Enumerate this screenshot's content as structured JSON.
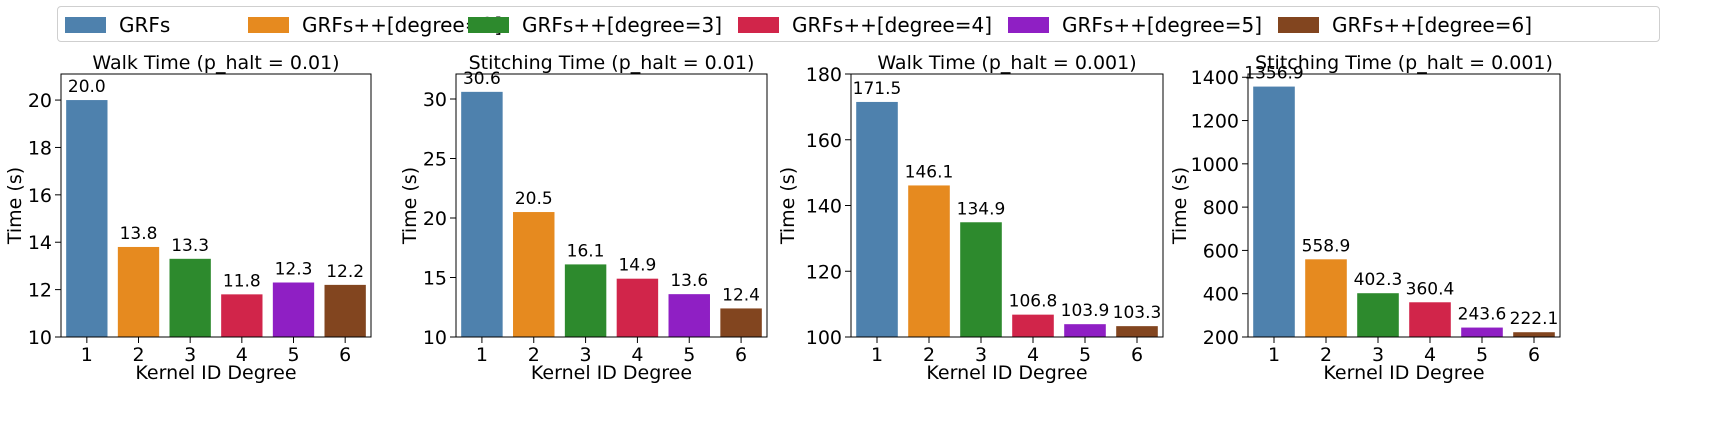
{
  "legend": {
    "items": [
      {
        "label": "GRFs",
        "color": "#4e81ad"
      },
      {
        "label": "GRFs++[degree=2]",
        "color": "#e68a1f"
      },
      {
        "label": "GRFs++[degree=3]",
        "color": "#2d8a2d"
      },
      {
        "label": "GRFs++[degree=4]",
        "color": "#d1254a"
      },
      {
        "label": "GRFs++[degree=5]",
        "color": "#8f1fc4"
      },
      {
        "label": "GRFs++[degree=6]",
        "color": "#82451f"
      }
    ]
  },
  "chart_data": [
    {
      "type": "bar",
      "title": "Walk Time (p_halt = 0.01)",
      "xlabel": "Kernel ID Degree",
      "ylabel": "Time (s)",
      "categories": [
        "1",
        "2",
        "3",
        "4",
        "5",
        "6"
      ],
      "values": [
        20.0,
        13.8,
        13.3,
        11.8,
        12.3,
        12.2
      ],
      "value_labels": [
        "20.0",
        "13.8",
        "13.3",
        "11.8",
        "12.3",
        "12.2"
      ],
      "ylim": [
        10,
        21.1
      ],
      "yticks": [
        10,
        12,
        14,
        16,
        18,
        20
      ],
      "grid": false
    },
    {
      "type": "bar",
      "title": "Stitching Time (p_halt = 0.01)",
      "xlabel": "Kernel ID Degree",
      "ylabel": "Time (s)",
      "categories": [
        "1",
        "2",
        "3",
        "4",
        "5",
        "6"
      ],
      "values": [
        30.6,
        20.5,
        16.1,
        14.9,
        13.6,
        12.4
      ],
      "value_labels": [
        "30.6",
        "20.5",
        "16.1",
        "14.9",
        "13.6",
        "12.4"
      ],
      "ylim": [
        10,
        32.1
      ],
      "yticks": [
        10,
        15,
        20,
        25,
        30
      ],
      "grid": false
    },
    {
      "type": "bar",
      "title": "Walk Time (p_halt = 0.001)",
      "xlabel": "Kernel ID Degree",
      "ylabel": "Time (s)",
      "categories": [
        "1",
        "2",
        "3",
        "4",
        "5",
        "6"
      ],
      "values": [
        171.5,
        146.1,
        134.9,
        106.8,
        103.9,
        103.3
      ],
      "value_labels": [
        "171.5",
        "146.1",
        "134.9",
        "106.8",
        "103.9",
        "103.3"
      ],
      "ylim": [
        100,
        180
      ],
      "yticks": [
        100,
        120,
        140,
        160,
        180
      ],
      "grid": false
    },
    {
      "type": "bar",
      "title": "Stitching Time (p_halt = 0.001)",
      "xlabel": "Kernel ID Degree",
      "ylabel": "Time (s)",
      "categories": [
        "1",
        "2",
        "3",
        "4",
        "5",
        "6"
      ],
      "values": [
        1356.9,
        558.9,
        402.3,
        360.4,
        243.6,
        222.1
      ],
      "value_labels": [
        "1356.9",
        "558.9",
        "402.3",
        "360.4",
        "243.6",
        "222.1"
      ],
      "ylim": [
        200,
        1415
      ],
      "yticks": [
        200,
        400,
        600,
        800,
        1000,
        1200,
        1400
      ],
      "grid": false
    }
  ]
}
